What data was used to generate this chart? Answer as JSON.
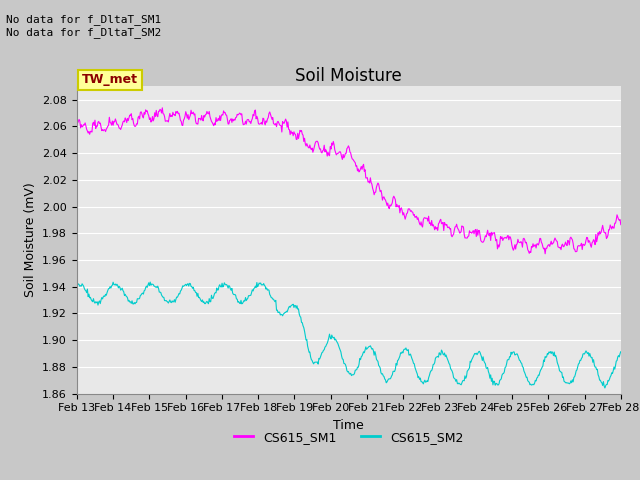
{
  "title": "Soil Moisture",
  "xlabel": "Time",
  "ylabel": "Soil Moisture (mV)",
  "ylim": [
    1.86,
    2.09
  ],
  "yticks": [
    1.86,
    1.88,
    1.9,
    1.92,
    1.94,
    1.96,
    1.98,
    2.0,
    2.02,
    2.04,
    2.06,
    2.08
  ],
  "xtick_labels": [
    "Feb 13",
    "Feb 14",
    "Feb 15",
    "Feb 16",
    "Feb 17",
    "Feb 18",
    "Feb 19",
    "Feb 20",
    "Feb 21",
    "Feb 22",
    "Feb 23",
    "Feb 24",
    "Feb 25",
    "Feb 26",
    "Feb 27",
    "Feb 28"
  ],
  "color_sm1": "#FF00FF",
  "color_sm2": "#00CCCC",
  "legend_labels": [
    "CS615_SM1",
    "CS615_SM2"
  ],
  "annotation_text": "No data for f_DltaT_SM1\nNo data for f_DltaT_SM2",
  "tw_met_label": "TW_met",
  "tw_met_facecolor": "#FFFF99",
  "tw_met_edgecolor": "#CCCC00",
  "tw_met_text_color": "#8B0000",
  "plot_bg_color": "#E8E8E8",
  "fig_bg_color": "#C8C8C8",
  "title_fontsize": 12,
  "label_fontsize": 9,
  "tick_fontsize": 8,
  "annotation_fontsize": 8
}
